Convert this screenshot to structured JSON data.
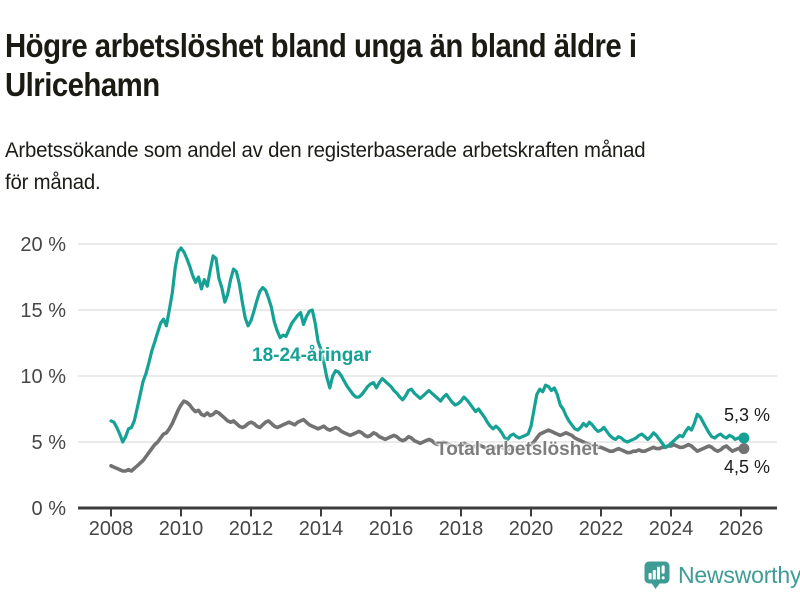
{
  "header": {
    "title_lines": [
      "Högre arbetslöshet bland unga än bland äldre i",
      "Ulricehamn"
    ],
    "subtitle_lines": [
      "Arbetssökande som andel av den registerbaserade arbetskraften månad",
      "för månad."
    ]
  },
  "footer": {
    "brand": "Newsworthy",
    "brand_color": "#3E9C94",
    "logo_icon": "bar-chart-speech-bubble-icon"
  },
  "chart_data": {
    "type": "line",
    "title": "Högre arbetslöshet bland unga än bland äldre i Ulricehamn",
    "subtitle": "Arbetssökande som andel av den registerbaserade arbetskraften månad för månad.",
    "unit": "%",
    "x_start_year": 2008,
    "months_per_point": 1,
    "x_tick_labels": [
      "2008",
      "2010",
      "2012",
      "2014",
      "2016",
      "2018",
      "2020",
      "2022",
      "2024",
      "2026"
    ],
    "x_tick_years": [
      2008,
      2010,
      2012,
      2014,
      2016,
      2018,
      2020,
      2022,
      2024,
      2026
    ],
    "y_tick_labels": [
      "0 %",
      "5 %",
      "10 %",
      "15 %",
      "20 %"
    ],
    "y_tick_values": [
      0,
      5,
      10,
      15,
      20
    ],
    "ylim": [
      0,
      20
    ],
    "grid": "horizontal",
    "legend_position": "inline-labels",
    "series": [
      {
        "name": "18-24-åringar",
        "label": "18-24-åringar",
        "color": "#16A195",
        "width": 3.2,
        "end_label": "5,3 %",
        "end_value": 5.3,
        "values": [
          6.6,
          6.5,
          6.1,
          5.6,
          5.0,
          5.4,
          6.0,
          6.1,
          6.6,
          7.6,
          8.6,
          9.6,
          10.2,
          11.0,
          11.9,
          12.6,
          13.3,
          14.0,
          14.3,
          13.8,
          15.0,
          16.3,
          18.2,
          19.4,
          19.7,
          19.4,
          18.9,
          18.3,
          17.6,
          17.1,
          17.5,
          16.6,
          17.3,
          16.8,
          18.0,
          19.1,
          18.9,
          17.4,
          16.7,
          15.6,
          16.2,
          17.3,
          18.1,
          17.9,
          17.0,
          15.6,
          14.4,
          13.8,
          14.2,
          14.9,
          15.7,
          16.4,
          16.7,
          16.5,
          15.9,
          15.2,
          14.1,
          13.4,
          12.9,
          13.1,
          13.0,
          13.5,
          14.0,
          14.3,
          14.6,
          14.8,
          13.9,
          14.5,
          14.9,
          15.0,
          14.0,
          12.6,
          12.0,
          11.0,
          9.9,
          9.1,
          10.0,
          10.4,
          10.3,
          10.0,
          9.6,
          9.2,
          8.9,
          8.6,
          8.4,
          8.4,
          8.6,
          8.9,
          9.2,
          9.4,
          9.5,
          9.1,
          9.5,
          9.8,
          9.6,
          9.4,
          9.2,
          8.9,
          8.7,
          8.4,
          8.2,
          8.5,
          8.9,
          9.0,
          8.7,
          8.5,
          8.3,
          8.5,
          8.7,
          8.9,
          8.7,
          8.5,
          8.3,
          8.1,
          8.4,
          8.6,
          8.3,
          8.0,
          7.8,
          7.9,
          8.1,
          8.4,
          8.2,
          7.9,
          7.6,
          7.3,
          7.5,
          7.2,
          6.9,
          6.5,
          6.2,
          6.0,
          6.2,
          6.0,
          5.7,
          5.3,
          5.2,
          5.5,
          5.6,
          5.4,
          5.3,
          5.4,
          5.5,
          5.6,
          6.2,
          7.4,
          8.6,
          9.0,
          8.8,
          9.3,
          9.2,
          8.9,
          9.1,
          8.6,
          7.8,
          7.5,
          7.0,
          6.6,
          6.3,
          6.0,
          5.9,
          6.1,
          6.4,
          6.2,
          6.5,
          6.3,
          6.0,
          5.8,
          5.9,
          6.1,
          5.8,
          5.5,
          5.3,
          5.2,
          5.4,
          5.3,
          5.1,
          5.0,
          5.1,
          5.2,
          5.3,
          5.5,
          5.6,
          5.4,
          5.2,
          5.4,
          5.7,
          5.5,
          5.2,
          4.9,
          4.6,
          4.7,
          4.9,
          5.1,
          5.3,
          5.5,
          5.4,
          5.8,
          6.1,
          5.9,
          6.4,
          7.1,
          6.9,
          6.5,
          6.1,
          5.7,
          5.4,
          5.3,
          5.5,
          5.6,
          5.4,
          5.3,
          5.5,
          5.4,
          5.2,
          5.3,
          5.3,
          5.3
        ]
      },
      {
        "name": "Total arbetslöshet",
        "label": "Total arbetslöshet",
        "color": "#727272",
        "width": 3.6,
        "end_label": "4,5 %",
        "end_value": 4.5,
        "values": [
          3.2,
          3.1,
          3.0,
          2.9,
          2.8,
          2.8,
          2.9,
          2.8,
          3.0,
          3.2,
          3.4,
          3.6,
          3.9,
          4.2,
          4.5,
          4.8,
          5.0,
          5.3,
          5.6,
          5.7,
          6.0,
          6.4,
          6.9,
          7.4,
          7.8,
          8.1,
          8.0,
          7.8,
          7.5,
          7.3,
          7.4,
          7.1,
          7.0,
          7.2,
          7.0,
          7.1,
          7.3,
          7.2,
          7.0,
          6.8,
          6.6,
          6.5,
          6.6,
          6.4,
          6.2,
          6.1,
          6.2,
          6.4,
          6.5,
          6.4,
          6.2,
          6.1,
          6.3,
          6.5,
          6.6,
          6.4,
          6.2,
          6.1,
          6.2,
          6.3,
          6.4,
          6.5,
          6.4,
          6.3,
          6.5,
          6.6,
          6.7,
          6.5,
          6.3,
          6.2,
          6.1,
          6.0,
          6.1,
          6.2,
          6.0,
          5.9,
          6.0,
          6.1,
          6.0,
          5.8,
          5.7,
          5.6,
          5.5,
          5.6,
          5.7,
          5.8,
          5.7,
          5.5,
          5.4,
          5.5,
          5.7,
          5.6,
          5.4,
          5.3,
          5.2,
          5.3,
          5.4,
          5.5,
          5.4,
          5.2,
          5.1,
          5.2,
          5.4,
          5.3,
          5.1,
          5.0,
          4.9,
          5.0,
          5.1,
          5.2,
          5.1,
          4.9,
          4.8,
          4.9,
          5.0,
          4.9,
          4.8,
          4.7,
          4.6,
          4.7,
          4.8,
          4.9,
          4.8,
          4.7,
          4.6,
          4.7,
          4.8,
          4.7,
          4.6,
          4.5,
          4.4,
          4.5,
          4.6,
          4.7,
          4.6,
          4.5,
          4.4,
          4.5,
          4.6,
          4.5,
          4.4,
          4.4,
          4.5,
          4.6,
          4.8,
          5.0,
          5.3,
          5.6,
          5.7,
          5.8,
          5.9,
          5.8,
          5.7,
          5.6,
          5.5,
          5.6,
          5.7,
          5.6,
          5.5,
          5.3,
          5.2,
          5.1,
          5.0,
          4.9,
          4.8,
          4.7,
          4.6,
          4.6,
          4.6,
          4.5,
          4.4,
          4.3,
          4.3,
          4.4,
          4.5,
          4.4,
          4.3,
          4.2,
          4.2,
          4.3,
          4.3,
          4.4,
          4.3,
          4.3,
          4.4,
          4.5,
          4.6,
          4.5,
          4.5,
          4.6,
          4.6,
          4.7,
          4.7,
          4.8,
          4.7,
          4.6,
          4.6,
          4.7,
          4.8,
          4.7,
          4.5,
          4.3,
          4.4,
          4.5,
          4.6,
          4.7,
          4.6,
          4.4,
          4.3,
          4.4,
          4.6,
          4.7,
          4.5,
          4.3,
          4.4,
          4.5,
          4.5,
          4.5
        ]
      }
    ],
    "colors": {
      "axis": "#3d3d3d",
      "gridline": "#dedede",
      "tick_label": "#464646",
      "value_label": "#1c1c1c"
    }
  }
}
